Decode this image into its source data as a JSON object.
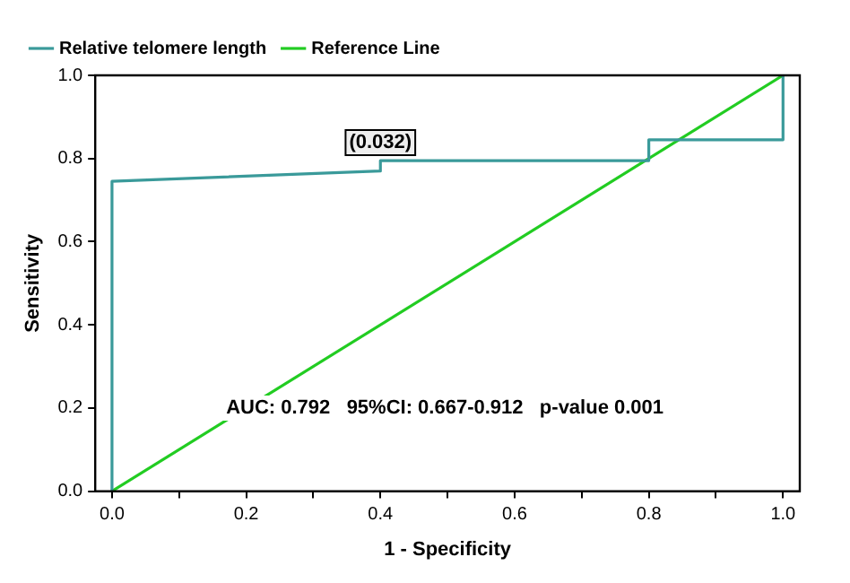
{
  "chart_data": {
    "type": "line",
    "xlabel": "1 - Specificity",
    "ylabel": "Sensitivity",
    "series": [
      {
        "name": "Relative telomere length",
        "color": "#3a9a9a",
        "x": [
          0,
          0,
          0.4,
          0.4,
          0.8,
          0.8,
          1,
          1
        ],
        "values": [
          0,
          0.745,
          0.77,
          0.795,
          0.795,
          0.845,
          0.845,
          1
        ]
      },
      {
        "name": "Reference Line",
        "color": "#22cc22",
        "x": [
          0,
          1
        ],
        "values": [
          0,
          1
        ]
      }
    ],
    "xlim": [
      -0.025,
      1.025
    ],
    "ylim": [
      0,
      1
    ],
    "xticks": [
      {
        "value": 0,
        "label": "0.0"
      },
      {
        "value": 0.1,
        "label": null
      },
      0.2,
      {
        "value": 0.3,
        "label": null
      },
      0.4,
      {
        "value": 0.5,
        "label": null
      },
      0.6,
      {
        "value": 0.7,
        "label": null
      },
      0.8,
      {
        "value": 0.9,
        "label": null
      },
      {
        "value": 1,
        "label": "1.0"
      }
    ],
    "yticks": [
      {
        "value": 0,
        "label": "0.0"
      },
      0.2,
      0.4,
      0.6,
      0.8,
      {
        "value": 1,
        "label": "1.0"
      }
    ],
    "annotations": [
      {
        "text": "(0.032)",
        "x": 0.4,
        "y": 0.795
      },
      "AUC: 0.792   95%CI: 0.667-0.912   p-value 0.001"
    ],
    "grid": false,
    "legend": "top left",
    "marker": "none",
    "line_style": "solid"
  }
}
